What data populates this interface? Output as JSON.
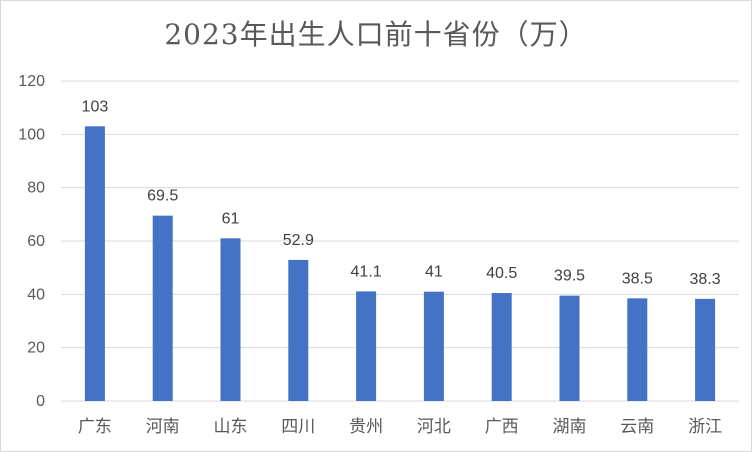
{
  "chart_data": {
    "type": "bar",
    "title": "2023年出生人口前十省份（万）",
    "categories": [
      "广东",
      "河南",
      "山东",
      "四川",
      "贵州",
      "河北",
      "广西",
      "湖南",
      "云南",
      "浙江"
    ],
    "values": [
      103,
      69.5,
      61,
      52.9,
      41.1,
      41,
      40.5,
      39.5,
      38.5,
      38.3
    ],
    "data_labels": [
      "103",
      "69.5",
      "61",
      "52.9",
      "41.1",
      "41",
      "40.5",
      "39.5",
      "38.5",
      "38.3"
    ],
    "ylim": [
      0,
      120
    ],
    "yticks": [
      0,
      20,
      40,
      60,
      80,
      100,
      120
    ],
    "grid": true,
    "legend": "none",
    "bar_color": "#4472C4",
    "grid_color": "#d9d9d9"
  }
}
